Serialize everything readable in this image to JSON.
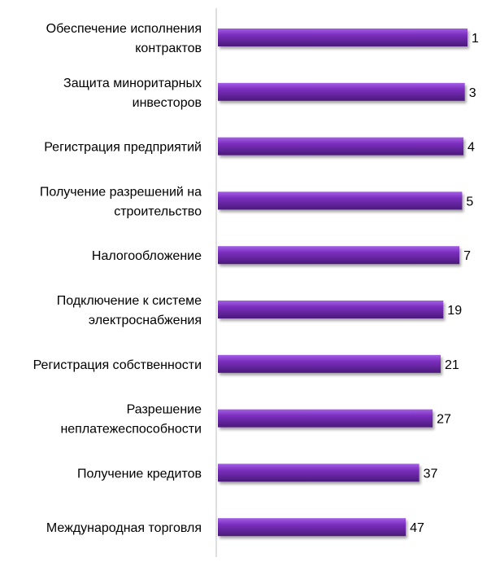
{
  "chart_data": {
    "type": "bar",
    "orientation": "horizontal",
    "categories": [
      [
        "Обеспечение исполнения",
        "контрактов"
      ],
      [
        "Защита миноритарных",
        "инвесторов"
      ],
      [
        "Регистрация предприятий"
      ],
      [
        "Получение разрешений  на",
        "строительство"
      ],
      [
        "Налогообложение"
      ],
      [
        "Подключение к системе",
        "электроснабжения"
      ],
      [
        "Регистрация собственности"
      ],
      [
        "Разрешение",
        "неплатежеспособности"
      ],
      [
        "Получение кредитов"
      ],
      [
        "Международная торговля"
      ]
    ],
    "values": [
      1,
      3,
      4,
      5,
      7,
      19,
      21,
      27,
      37,
      47
    ],
    "title": "",
    "xlabel": "",
    "ylabel": "",
    "xlim": [
      0,
      55
    ],
    "axis_reversed": true,
    "grid": false,
    "legend": "none",
    "colors": {
      "bar": "#7b2fbe",
      "bar_top": "#a45fe6",
      "bar_shadow": "#4a1a7a",
      "axis": "#bfbfbf"
    }
  }
}
